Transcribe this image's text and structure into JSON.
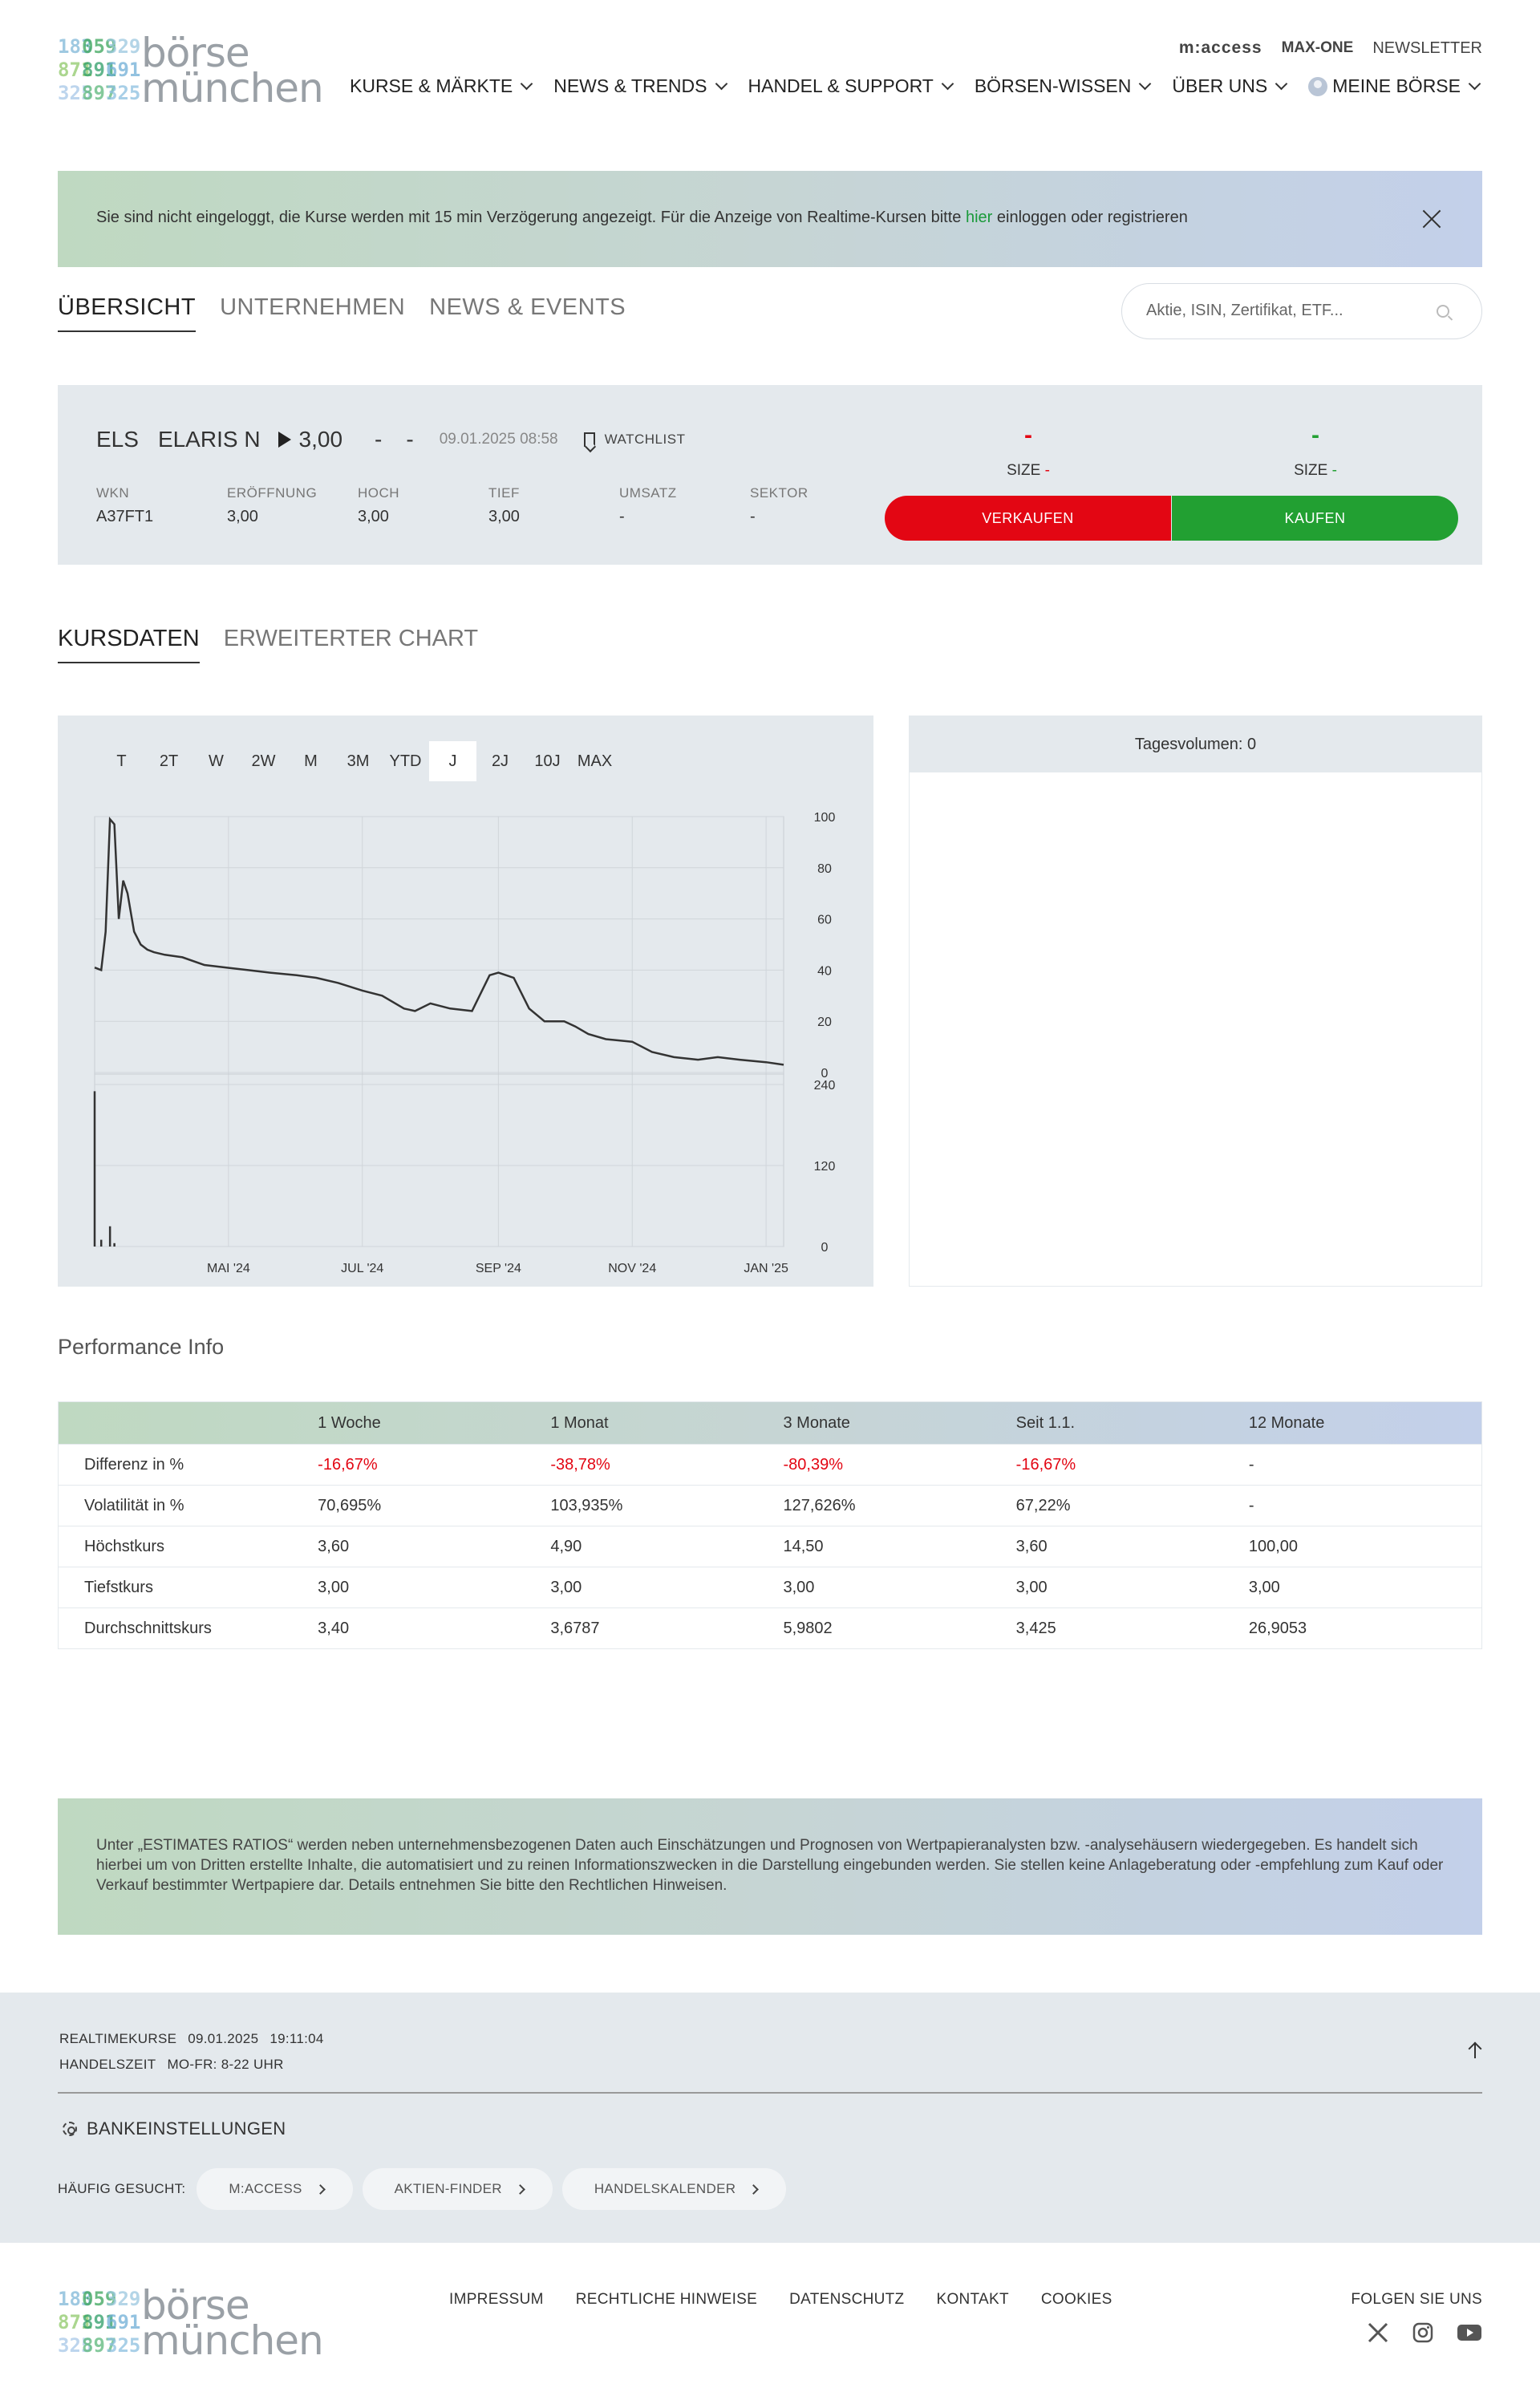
{
  "header": {
    "logo_word1": "börse",
    "logo_word2": "münchen",
    "logo_digits": [
      "183",
      "059",
      "329",
      "871",
      "891",
      "691",
      "325",
      "897",
      "325"
    ],
    "top_links": [
      "m:access",
      "MAX-ONE",
      "NEWSLETTER"
    ],
    "nav": [
      "KURSE & MÄRKTE",
      "NEWS & TRENDS",
      "HANDEL & SUPPORT",
      "BÖRSEN-WISSEN",
      "ÜBER UNS",
      "MEINE BÖRSE"
    ]
  },
  "banner": {
    "text_before": "Sie sind nicht eingeloggt, die Kurse werden mit 15 min Verzögerung angezeigt. Für die Anzeige von Realtime-Kursen bitte ",
    "link": "hier",
    "text_after": " einloggen oder registrieren"
  },
  "page_tabs": [
    "ÜBERSICHT",
    "UNTERNEHMEN",
    "NEWS & EVENTS"
  ],
  "search": {
    "placeholder": "Aktie, ISIN, Zertifikat, ETF..."
  },
  "quote": {
    "symbol": "ELS",
    "name": "ELARIS N",
    "price": "3,00",
    "change": "-",
    "change_pct": "-",
    "timestamp": "09.01.2025 08:58",
    "watchlist": "WATCHLIST",
    "fields": [
      {
        "label": "WKN",
        "value": "A37FT1"
      },
      {
        "label": "ERÖFFNUNG",
        "value": "3,00"
      },
      {
        "label": "HOCH",
        "value": "3,00"
      },
      {
        "label": "TIEF",
        "value": "3,00"
      },
      {
        "label": "UMSATZ",
        "value": "-"
      },
      {
        "label": "SEKTOR",
        "value": "-"
      }
    ],
    "bid": {
      "price": "-",
      "size_label": "SIZE",
      "size": "-"
    },
    "ask": {
      "price": "-",
      "size_label": "SIZE",
      "size": "-"
    },
    "sell_label": "VERKAUFEN",
    "buy_label": "KAUFEN",
    "sell_color": "#e30613",
    "buy_color": "#22a032"
  },
  "sub_tabs": [
    "KURSDATEN",
    "ERWEITERTER CHART"
  ],
  "chart_ranges": [
    "T",
    "2T",
    "W",
    "2W",
    "M",
    "3M",
    "YTD",
    "J",
    "2J",
    "10J",
    "MAX"
  ],
  "chart_range_selected": "J",
  "volume_panel": {
    "title": "Tagesvolumen: 0"
  },
  "chart_data": {
    "type": "line",
    "title": "",
    "x_tick_labels": [
      "MAI '24",
      "JUL '24",
      "SEP '24",
      "NOV '24",
      "JAN '25"
    ],
    "price_axis": {
      "ticks": [
        "100",
        "80",
        "60",
        "40",
        "20",
        "0"
      ],
      "ylim": [
        0,
        100
      ]
    },
    "volume_axis": {
      "ticks": [
        "240",
        "120",
        "0"
      ],
      "ylim": [
        0,
        240
      ]
    },
    "grid": true,
    "x": [
      "2024-03-01",
      "2024-03-04",
      "2024-03-06",
      "2024-03-08",
      "2024-03-10",
      "2024-03-12",
      "2024-03-14",
      "2024-03-16",
      "2024-03-19",
      "2024-03-22",
      "2024-03-25",
      "2024-03-28",
      "2024-04-02",
      "2024-04-10",
      "2024-04-20",
      "2024-04-30",
      "2024-05-10",
      "2024-05-20",
      "2024-06-01",
      "2024-06-10",
      "2024-06-20",
      "2024-07-01",
      "2024-07-10",
      "2024-07-20",
      "2024-07-25",
      "2024-08-01",
      "2024-08-10",
      "2024-08-20",
      "2024-08-28",
      "2024-09-01",
      "2024-09-08",
      "2024-09-15",
      "2024-09-22",
      "2024-10-01",
      "2024-10-06",
      "2024-10-12",
      "2024-10-20",
      "2024-11-01",
      "2024-11-10",
      "2024-11-20",
      "2024-12-01",
      "2024-12-10",
      "2024-12-20",
      "2025-01-01",
      "2025-01-09"
    ],
    "series": [
      {
        "values": [
          41,
          40,
          55,
          99,
          97,
          60,
          75,
          70,
          55,
          50,
          48,
          47,
          46,
          45,
          42,
          41,
          40,
          39,
          38,
          37,
          35,
          32,
          30,
          25,
          24,
          27,
          25,
          24,
          38,
          39,
          37,
          25,
          20,
          20,
          18,
          15,
          13,
          12,
          8,
          6,
          5,
          6,
          5,
          4,
          3
        ]
      }
    ],
    "volume": [
      230,
      10,
      0,
      30,
      5,
      0,
      0,
      0,
      0,
      0,
      0,
      0,
      0,
      0,
      0,
      0,
      0,
      0,
      0,
      0,
      0,
      0,
      0,
      0,
      0,
      0,
      0,
      0,
      0,
      0,
      0,
      0,
      0,
      0,
      0,
      0,
      0,
      0,
      0,
      0,
      0,
      0,
      0,
      0,
      0
    ]
  },
  "performance": {
    "title": "Performance Info",
    "columns": [
      "",
      "1 Woche",
      "1 Monat",
      "3 Monate",
      "Seit 1.1.",
      "12 Monate"
    ],
    "rows": [
      {
        "label": "Differenz in %",
        "values": [
          "-16,67%",
          "-38,78%",
          "-80,39%",
          "-16,67%",
          "-"
        ],
        "negative": true
      },
      {
        "label": "Volatilität in %",
        "values": [
          "70,695%",
          "103,935%",
          "127,626%",
          "67,22%",
          "-"
        ]
      },
      {
        "label": "Höchstkurs",
        "values": [
          "3,60",
          "4,90",
          "14,50",
          "3,60",
          "100,00"
        ]
      },
      {
        "label": "Tiefstkurs",
        "values": [
          "3,00",
          "3,00",
          "3,00",
          "3,00",
          "3,00"
        ]
      },
      {
        "label": "Durchschnittskurs",
        "values": [
          "3,40",
          "3,6787",
          "5,9802",
          "3,425",
          "26,9053"
        ]
      }
    ]
  },
  "disclaimer": "Unter „ESTIMATES RATIOS“ werden neben unternehmensbezogenen Daten auch Einschätzungen und Prognosen von Wertpapieranalysten bzw. -analysehäusern wiedergegeben. Es handelt sich hierbei um von Dritten erstellte Inhalte, die automatisiert und zu reinen Informationszwecken in die Darstellung eingebunden werden. Sie stellen keine Anlageberatung oder -empfehlung zum Kauf oder Verkauf bestimmter Wertpapiere dar. Details entnehmen Sie bitte den Rechtlichen Hinweisen.",
  "footer": {
    "realtime_label": "REALTIMEKURSE",
    "realtime_date": "09.01.2025",
    "realtime_time": "19:11:04",
    "hours_label": "HANDELSZEIT",
    "hours_value": "MO-FR: 8-22 UHR",
    "bank_settings": "BANKEINSTELLUNGEN",
    "frequent_label": "HÄUFIG GESUCHT:",
    "frequent": [
      "M:ACCESS",
      "AKTIEN-FINDER",
      "HANDELSKALENDER"
    ],
    "links": [
      "IMPRESSUM",
      "RECHTLICHE HINWEISE",
      "DATENSCHUTZ",
      "KONTAKT",
      "COOKIES"
    ],
    "follow": "FOLGEN SIE UNS",
    "social_icons": [
      "x-icon",
      "instagram-icon",
      "youtube-icon"
    ]
  }
}
